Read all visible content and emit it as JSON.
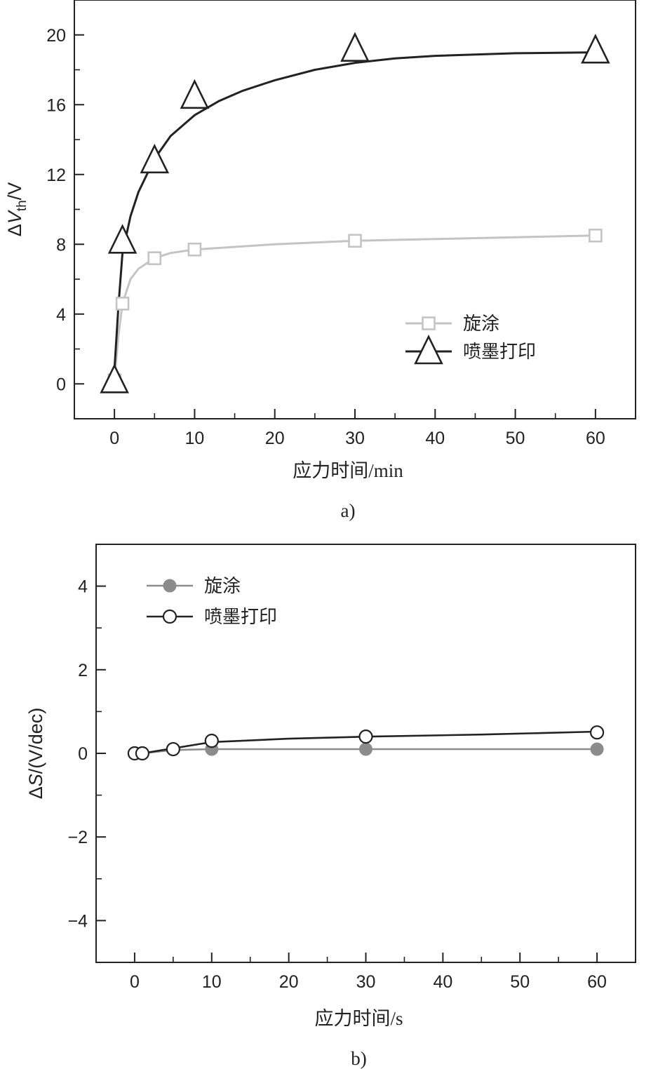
{
  "chart_data": [
    {
      "type": "line",
      "panel": "a)",
      "xlabel": "应力时间/min",
      "ylabel": {
        "prefix": "Δ",
        "var": "V",
        "sub": "th",
        "unit": "/V"
      },
      "xlim": [
        -5,
        65
      ],
      "ylim": [
        -2,
        22
      ],
      "xticks": [
        0,
        10,
        20,
        30,
        40,
        50,
        60
      ],
      "yticks": [
        0,
        4,
        8,
        12,
        16,
        20
      ],
      "legend_position": "bottom-right",
      "series": [
        {
          "name": "旋涂",
          "marker": "square-open",
          "color": "#c4c4c4",
          "x": [
            0,
            1,
            5,
            10,
            30,
            60
          ],
          "y": [
            0.2,
            4.6,
            7.2,
            7.7,
            8.2,
            8.5
          ],
          "fit": [
            [
              0,
              0.2
            ],
            [
              0.5,
              2.8
            ],
            [
              1,
              4.6
            ],
            [
              2,
              6.0
            ],
            [
              3,
              6.6
            ],
            [
              5,
              7.2
            ],
            [
              7,
              7.5
            ],
            [
              10,
              7.7
            ],
            [
              15,
              7.85
            ],
            [
              20,
              8.0
            ],
            [
              30,
              8.2
            ],
            [
              45,
              8.35
            ],
            [
              60,
              8.5
            ]
          ]
        },
        {
          "name": "喷墨打印",
          "marker": "triangle-open",
          "color": "#222222",
          "x": [
            0,
            1,
            5,
            10,
            30,
            60
          ],
          "y": [
            0.2,
            8.2,
            12.8,
            16.5,
            19.2,
            19.1
          ],
          "fit": [
            [
              0,
              0.8
            ],
            [
              0.5,
              4.5
            ],
            [
              1,
              7.5
            ],
            [
              2,
              9.6
            ],
            [
              3,
              11.0
            ],
            [
              5,
              12.9
            ],
            [
              7,
              14.2
            ],
            [
              10,
              15.4
            ],
            [
              13,
              16.2
            ],
            [
              16,
              16.8
            ],
            [
              20,
              17.4
            ],
            [
              25,
              18.0
            ],
            [
              30,
              18.4
            ],
            [
              35,
              18.65
            ],
            [
              40,
              18.8
            ],
            [
              50,
              18.95
            ],
            [
              60,
              19.0
            ]
          ]
        }
      ]
    },
    {
      "type": "line",
      "panel": "b)",
      "xlabel": "应力时间/s",
      "ylabel": {
        "prefix": "Δ",
        "var": "S",
        "sub": "",
        "unit": "/(V/dec)"
      },
      "xlim": [
        -5,
        65
      ],
      "ylim": [
        -5,
        5
      ],
      "xticks": [
        0,
        10,
        20,
        30,
        40,
        50,
        60
      ],
      "yticks": [
        -4,
        -2,
        0,
        2,
        4
      ],
      "ytick_labels": [
        "−4",
        "−2",
        "0",
        "2",
        "4"
      ],
      "legend_position": "top-left",
      "series": [
        {
          "name": "旋涂",
          "marker": "circle-filled",
          "color": "#8c8c8c",
          "x": [
            0,
            1,
            5,
            10,
            30,
            60
          ],
          "y": [
            0.0,
            0.0,
            0.1,
            0.1,
            0.1,
            0.1
          ],
          "fit": [
            [
              0,
              0.0
            ],
            [
              1,
              0.0
            ],
            [
              5,
              0.08
            ],
            [
              10,
              0.1
            ],
            [
              30,
              0.1
            ],
            [
              60,
              0.1
            ]
          ]
        },
        {
          "name": "喷墨打印",
          "marker": "circle-open",
          "color": "#222222",
          "x": [
            0,
            1,
            5,
            10,
            30,
            60
          ],
          "y": [
            0.0,
            0.0,
            0.1,
            0.3,
            0.4,
            0.5
          ],
          "fit": [
            [
              0,
              0.0
            ],
            [
              1,
              0.0
            ],
            [
              5,
              0.12
            ],
            [
              10,
              0.27
            ],
            [
              20,
              0.35
            ],
            [
              30,
              0.4
            ],
            [
              45,
              0.45
            ],
            [
              60,
              0.52
            ]
          ]
        }
      ]
    }
  ]
}
